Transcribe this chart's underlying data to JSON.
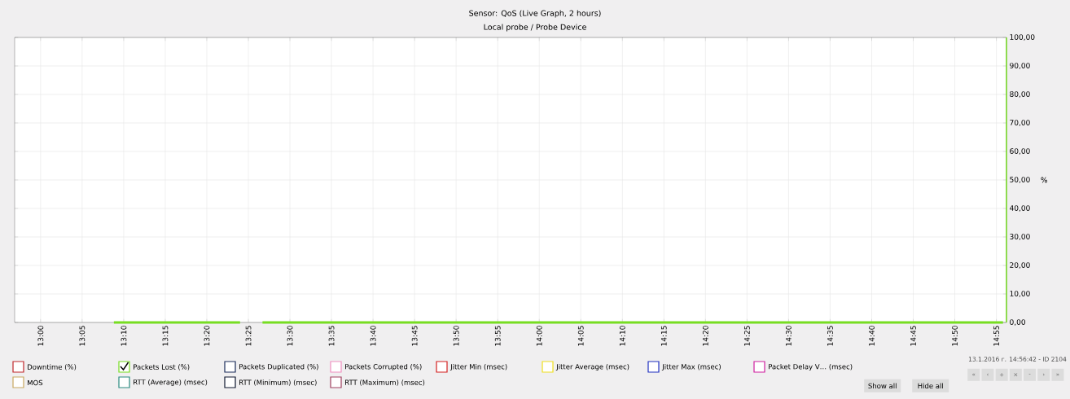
{
  "chart_data": {
    "type": "line",
    "title": "Sensor: QoS (Live Graph, 2 hours)",
    "subtitle": "Local probe / Probe Device",
    "ylabel": "%",
    "xlim": [
      12.948,
      14.937
    ],
    "ylim": [
      0,
      100
    ],
    "xticks": [
      {
        "value": 13.0,
        "label": "13:00"
      },
      {
        "value": 13.0833,
        "label": "13:05"
      },
      {
        "value": 13.1667,
        "label": "13:10"
      },
      {
        "value": 13.25,
        "label": "13:15"
      },
      {
        "value": 13.3333,
        "label": "13:20"
      },
      {
        "value": 13.4167,
        "label": "13:25"
      },
      {
        "value": 13.5,
        "label": "13:30"
      },
      {
        "value": 13.5833,
        "label": "13:35"
      },
      {
        "value": 13.6667,
        "label": "13:40"
      },
      {
        "value": 13.75,
        "label": "13:45"
      },
      {
        "value": 13.8333,
        "label": "13:50"
      },
      {
        "value": 13.9167,
        "label": "13:55"
      },
      {
        "value": 14.0,
        "label": "14:00"
      },
      {
        "value": 14.0833,
        "label": "14:05"
      },
      {
        "value": 14.1667,
        "label": "14:10"
      },
      {
        "value": 14.25,
        "label": "14:15"
      },
      {
        "value": 14.3333,
        "label": "14:20"
      },
      {
        "value": 14.4167,
        "label": "14:25"
      },
      {
        "value": 14.5,
        "label": "14:30"
      },
      {
        "value": 14.5833,
        "label": "14:35"
      },
      {
        "value": 14.6667,
        "label": "14:40"
      },
      {
        "value": 14.75,
        "label": "14:45"
      },
      {
        "value": 14.8333,
        "label": "14:50"
      },
      {
        "value": 14.9167,
        "label": "14:55"
      }
    ],
    "yticks": [
      {
        "value": 0,
        "label": "0,00"
      },
      {
        "value": 10,
        "label": "10,00"
      },
      {
        "value": 20,
        "label": "20,00"
      },
      {
        "value": 30,
        "label": "30,00"
      },
      {
        "value": 40,
        "label": "40,00"
      },
      {
        "value": 50,
        "label": "50,00"
      },
      {
        "value": 60,
        "label": "60,00"
      },
      {
        "value": 70,
        "label": "70,00"
      },
      {
        "value": 80,
        "label": "80,00"
      },
      {
        "value": 90,
        "label": "90,00"
      },
      {
        "value": 100,
        "label": "100,00"
      }
    ],
    "grid": true,
    "legend": "bottom",
    "series": [
      {
        "name": "Downtime (%)",
        "color": "#c0282d"
      },
      {
        "name": "Packets Lost (%)",
        "color": "#77dd22",
        "x": [
          13.147,
          13.4,
          13.42,
          13.445,
          14.93
        ],
        "values": [
          0,
          0,
          null,
          0,
          0
        ]
      },
      {
        "name": "Packets Duplicated (%)",
        "color": "#1c2c5a"
      },
      {
        "name": "Packets Corrupted (%)",
        "color": "#f090c0"
      },
      {
        "name": "Jitter Min (msec)",
        "color": "#d42020"
      },
      {
        "name": "Jitter Average (msec)",
        "color": "#f0e020"
      },
      {
        "name": "Jitter Max (msec)",
        "color": "#2030c0"
      },
      {
        "name": "Packet Delay V… (msec)",
        "color": "#d020a0"
      },
      {
        "name": "MOS",
        "color": "#c8a860"
      },
      {
        "name": "RTT (Average) (msec)",
        "color": "#2a8a80"
      },
      {
        "name": "RTT (Minimum) (msec)",
        "color": "#101830"
      },
      {
        "name": "RTT (Maximum) (msec)",
        "color": "#a04060"
      }
    ],
    "annotations": [
      "13.1.2016 г. 14:56:42 - ID 2104",
      "Show all",
      "Hide all",
      "«",
      "‹",
      "+",
      "×",
      "-",
      "›",
      "»"
    ]
  }
}
